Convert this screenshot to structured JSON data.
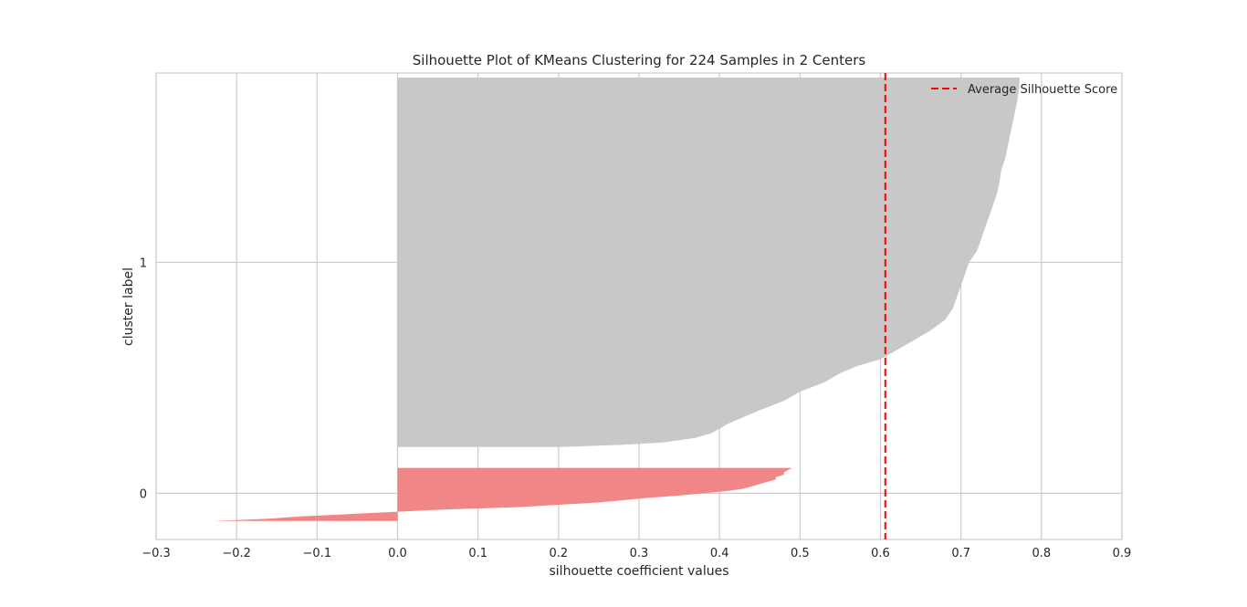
{
  "chart_data": {
    "type": "area",
    "title": "Silhouette Plot of KMeans Clustering for 224 Samples in 2 Centers",
    "xlabel": "silhouette coefficient values",
    "ylabel": "cluster label",
    "xlim": [
      -0.3,
      0.9
    ],
    "ylim": [
      -0.2,
      1.82
    ],
    "x_ticks": [
      "−0.3",
      "−0.2",
      "−0.1",
      "0.0",
      "0.1",
      "0.2",
      "0.3",
      "0.4",
      "0.5",
      "0.6",
      "0.7",
      "0.8",
      "0.9"
    ],
    "x_tick_values": [
      -0.3,
      -0.2,
      -0.1,
      0.0,
      0.1,
      0.2,
      0.3,
      0.4,
      0.5,
      0.6,
      0.7,
      0.8,
      0.9
    ],
    "y_ticks": [
      "0",
      "1"
    ],
    "y_tick_values": [
      0,
      1
    ],
    "grid": true,
    "legend": {
      "position": "top-right",
      "entries": [
        "Average Silhouette Score"
      ]
    },
    "average_silhouette_score": 0.606,
    "series": [
      {
        "cluster": "0",
        "color": "#f08080",
        "profile": [
          [
            -0.12,
            -0.228
          ],
          [
            -0.11,
            -0.16
          ],
          [
            -0.1,
            -0.12
          ],
          [
            -0.09,
            -0.06
          ],
          [
            -0.08,
            0.0
          ],
          [
            -0.07,
            0.06
          ],
          [
            -0.06,
            0.15
          ],
          [
            -0.05,
            0.2
          ],
          [
            -0.04,
            0.25
          ],
          [
            -0.03,
            0.28
          ],
          [
            -0.02,
            0.31
          ],
          [
            -0.01,
            0.35
          ],
          [
            0.0,
            0.38
          ],
          [
            0.01,
            0.41
          ],
          [
            0.02,
            0.43
          ],
          [
            0.03,
            0.44
          ],
          [
            0.04,
            0.45
          ],
          [
            0.05,
            0.46
          ],
          [
            0.06,
            0.47
          ],
          [
            0.07,
            0.47
          ],
          [
            0.08,
            0.48
          ],
          [
            0.09,
            0.48
          ],
          [
            0.1,
            0.485
          ],
          [
            0.11,
            0.49
          ]
        ]
      },
      {
        "cluster": "1",
        "color": "#c8c8c8",
        "profile": [
          [
            0.2,
            0.2
          ],
          [
            0.21,
            0.28
          ],
          [
            0.22,
            0.33
          ],
          [
            0.23,
            0.35
          ],
          [
            0.24,
            0.37
          ],
          [
            0.25,
            0.38
          ],
          [
            0.26,
            0.39
          ],
          [
            0.28,
            0.4
          ],
          [
            0.3,
            0.41
          ],
          [
            0.33,
            0.43
          ],
          [
            0.36,
            0.45
          ],
          [
            0.4,
            0.48
          ],
          [
            0.44,
            0.5
          ],
          [
            0.48,
            0.53
          ],
          [
            0.52,
            0.55
          ],
          [
            0.55,
            0.57
          ],
          [
            0.58,
            0.6
          ],
          [
            0.62,
            0.62
          ],
          [
            0.66,
            0.64
          ],
          [
            0.7,
            0.66
          ],
          [
            0.75,
            0.68
          ],
          [
            0.8,
            0.69
          ],
          [
            0.85,
            0.695
          ],
          [
            0.9,
            0.7
          ],
          [
            0.95,
            0.705
          ],
          [
            1.0,
            0.71
          ],
          [
            1.05,
            0.72
          ],
          [
            1.1,
            0.725
          ],
          [
            1.15,
            0.73
          ],
          [
            1.2,
            0.735
          ],
          [
            1.25,
            0.74
          ],
          [
            1.3,
            0.745
          ],
          [
            1.35,
            0.748
          ],
          [
            1.4,
            0.75
          ],
          [
            1.45,
            0.755
          ],
          [
            1.5,
            0.758
          ],
          [
            1.55,
            0.761
          ],
          [
            1.6,
            0.764
          ],
          [
            1.65,
            0.767
          ],
          [
            1.7,
            0.77
          ],
          [
            1.75,
            0.772
          ],
          [
            1.8,
            0.773
          ]
        ]
      }
    ]
  },
  "colors": {
    "average_line": "#ff0000",
    "grid": "#cccccc",
    "frame": "#cccccc"
  }
}
